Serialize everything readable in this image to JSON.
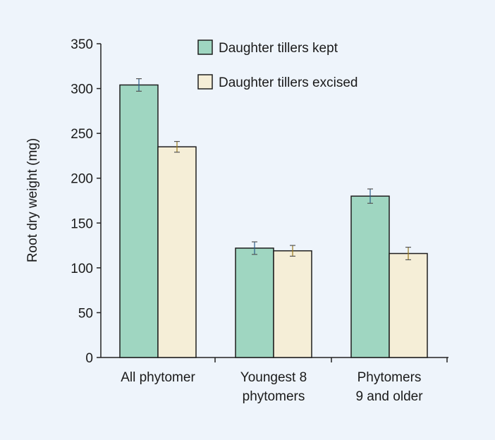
{
  "chart_data": {
    "type": "bar",
    "title": "",
    "xlabel": "",
    "ylabel": "Root dry weight (mg)",
    "ylim": [
      0,
      350
    ],
    "yticks": [
      0,
      50,
      100,
      150,
      200,
      250,
      300,
      350
    ],
    "categories": [
      [
        "All phytomer"
      ],
      [
        "Youngest 8",
        "phytomers"
      ],
      [
        "Phytomers",
        "9 and older"
      ]
    ],
    "series": [
      {
        "name": "Daughter tillers kept",
        "color": "#9fd6c1",
        "error_color": "#2c5f8a",
        "values": [
          304,
          122,
          180
        ],
        "errors": [
          7,
          7,
          8
        ]
      },
      {
        "name": "Daughter tillers excised",
        "color": "#f5eed7",
        "error_color": "#9a7a1a",
        "values": [
          235,
          119,
          116
        ],
        "errors": [
          6,
          6,
          7
        ]
      }
    ],
    "legend": {
      "position": "top-right"
    },
    "grid": false
  }
}
